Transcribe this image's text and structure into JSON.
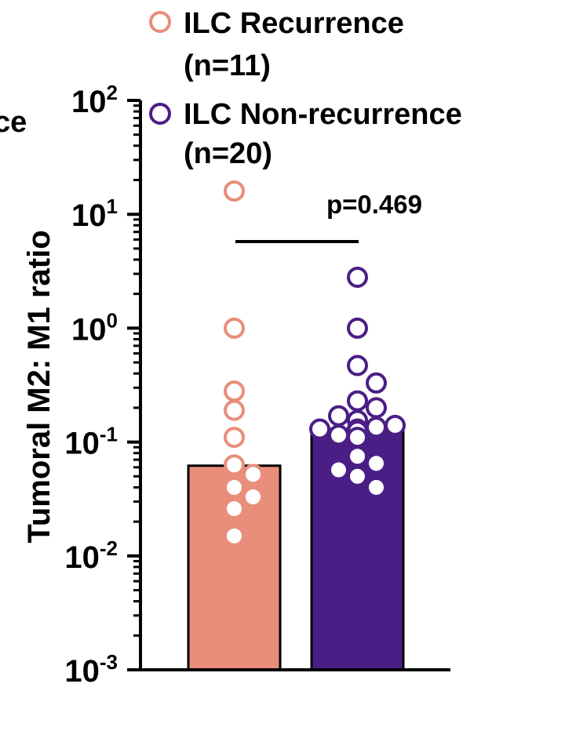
{
  "chart_data": {
    "type": "bar",
    "yscale": "log",
    "ylim": [
      0.001,
      100
    ],
    "ylabel": "Tumoral M2: M1 ratio",
    "cut_text": "ce",
    "ytick_labels": [
      {
        "value": 100,
        "base": "10",
        "exp": "2"
      },
      {
        "value": 10,
        "base": "10",
        "exp": "1"
      },
      {
        "value": 1,
        "base": "10",
        "exp": "0"
      },
      {
        "value": 0.1,
        "base": "10",
        "exp": "-1"
      },
      {
        "value": 0.01,
        "base": "10",
        "exp": "-2"
      },
      {
        "value": 0.001,
        "base": "10",
        "exp": "-3"
      }
    ],
    "series": [
      {
        "name": "ILC Recurrence",
        "legend_n": "(n=11)",
        "color": "#e88e7a",
        "bar_value": 0.062,
        "points": [
          16,
          1.0,
          0.28,
          0.19,
          0.11,
          0.063,
          0.052,
          0.04,
          0.033,
          0.026,
          0.015
        ]
      },
      {
        "name": "ILC Non-recurrence",
        "legend_n": "(n=20)",
        "color": "#4b1e86",
        "bar_value": 0.13,
        "points": [
          2.8,
          1.0,
          0.47,
          0.33,
          0.23,
          0.2,
          0.17,
          0.155,
          0.14,
          0.135,
          0.13,
          0.13,
          0.125,
          0.115,
          0.11,
          0.075,
          0.065,
          0.057,
          0.05,
          0.04
        ]
      }
    ],
    "annotation": {
      "text": "p=0.469"
    },
    "colors": {
      "axis": "#000000",
      "marker_fill": "#ffffff"
    }
  }
}
